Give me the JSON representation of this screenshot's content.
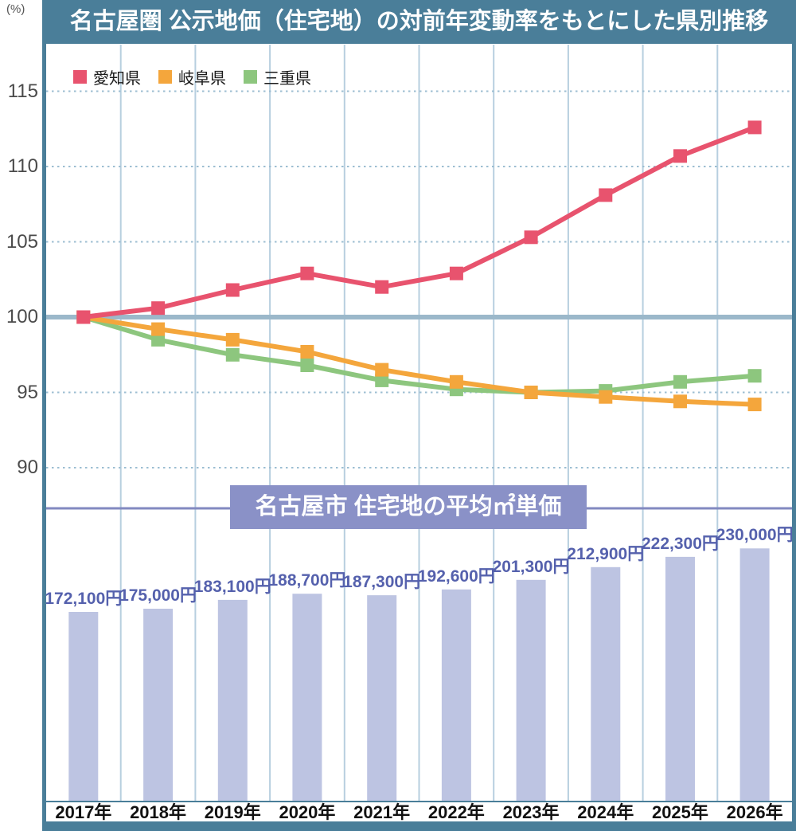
{
  "unit_label": "(%)",
  "colors": {
    "frame": "#4a7e99",
    "grid_vertical": "#b7cfdf",
    "grid_dotted": "#9cbed2",
    "baseline": "#9bb8ca",
    "divider": "#8289c0",
    "bar": "#bdc4e2",
    "bar_label": "#5561ad",
    "aichi": "#e8536e",
    "gifu": "#f4a63c",
    "mie": "#8dc67e"
  },
  "chart_data": [
    {
      "type": "line",
      "title": "名古屋圏 公示地価（住宅地）の対前年変動率をもとにした県別推移",
      "ylabel": "(%)",
      "x": [
        "2017年",
        "2018年",
        "2019年",
        "2020年",
        "2021年",
        "2022年",
        "2023年",
        "2024年",
        "2025年",
        "2026年"
      ],
      "yticks": [
        115,
        110,
        105,
        100,
        95,
        90
      ],
      "ylim": [
        87,
        117.5
      ],
      "baseline": 100,
      "grid": true,
      "legend_position": "top-left",
      "series": [
        {
          "name": "愛知県",
          "color": "#e8536e",
          "values": [
            100,
            100.6,
            101.8,
            102.9,
            102.0,
            102.9,
            105.3,
            108.1,
            110.7,
            112.6
          ]
        },
        {
          "name": "岐阜県",
          "color": "#f4a63c",
          "values": [
            100,
            99.2,
            98.5,
            97.7,
            96.5,
            95.7,
            95.0,
            94.7,
            94.4,
            94.2
          ]
        },
        {
          "name": "三重県",
          "color": "#8dc67e",
          "values": [
            100,
            98.5,
            97.5,
            96.8,
            95.8,
            95.2,
            95.0,
            95.1,
            95.7,
            96.1
          ]
        }
      ]
    },
    {
      "type": "bar",
      "title": "名古屋市 住宅地の平均㎡単価",
      "categories": [
        "2017年",
        "2018年",
        "2019年",
        "2020年",
        "2021年",
        "2022年",
        "2023年",
        "2024年",
        "2025年",
        "2026年"
      ],
      "values": [
        172100,
        175000,
        183100,
        188700,
        187300,
        192600,
        201300,
        212900,
        222300,
        230000
      ],
      "labels": [
        "172,100円",
        "175,000円",
        "183,100円",
        "188,700円",
        "187,300円",
        "192,600円",
        "201,300円",
        "212,900円",
        "222,300円",
        "230,000円"
      ],
      "ylim": [
        0,
        235000
      ]
    }
  ]
}
